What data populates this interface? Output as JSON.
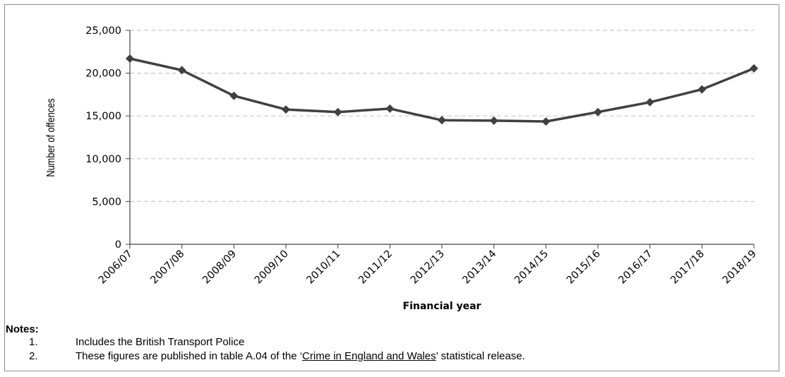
{
  "chart_data": {
    "type": "line",
    "ylabel": "Number of offences",
    "xlabel": "Financial year",
    "ylim": [
      0,
      25000
    ],
    "yticks": [
      0,
      5000,
      10000,
      15000,
      20000,
      25000
    ],
    "ytick_labels": [
      "0",
      "5,000",
      "10,000",
      "15,000",
      "20,000",
      "25,000"
    ],
    "grid": "horizontal dashed",
    "categories": [
      "2006/07",
      "2007/08",
      "2008/09",
      "2009/10",
      "2010/11",
      "2011/12",
      "2012/13",
      "2013/14",
      "2014/15",
      "2015/16",
      "2016/17",
      "2017/18",
      "2018/19"
    ],
    "series": [
      {
        "values": [
          21700,
          20350,
          17350,
          15750,
          15450,
          15850,
          14500,
          14450,
          14350,
          15450,
          16600,
          18100,
          20550
        ],
        "color": "#404040"
      }
    ]
  },
  "notes": {
    "title": "Notes:",
    "items": [
      {
        "num": "1.",
        "text": "Includes the British Transport Police"
      },
      {
        "num": "2.",
        "before": "These figures are published in table A.04 of the ‘",
        "link": "Crime in England and Wales",
        "after": "’ statistical release."
      }
    ]
  }
}
